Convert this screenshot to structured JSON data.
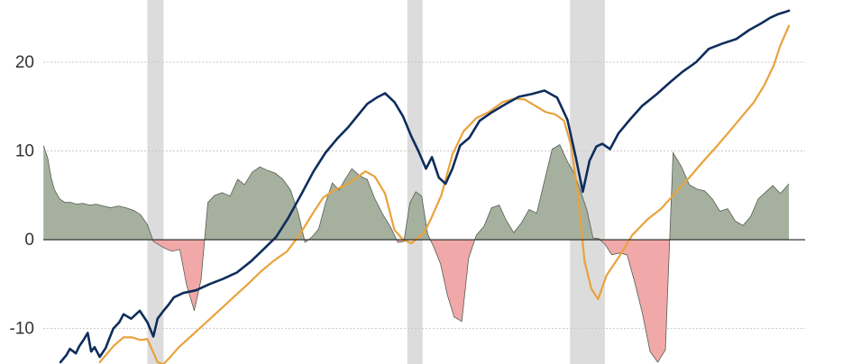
{
  "chart_data": {
    "type": "area",
    "title": "",
    "xlabel": "",
    "ylabel": "",
    "x_range": [
      0,
      100
    ],
    "ylim": [
      -14,
      27
    ],
    "y_ticks": [
      {
        "value": 20,
        "label": "20"
      },
      {
        "value": 10,
        "label": "10"
      },
      {
        "value": 0,
        "label": "0"
      },
      {
        "value": -10,
        "label": "-10"
      }
    ],
    "grid": true,
    "legend": "none",
    "shaded_periods": [
      {
        "start": 17.3,
        "end": 19.2
      },
      {
        "start": 47.8,
        "end": 49.6
      },
      {
        "start": 66.9,
        "end": 71.0
      }
    ],
    "colors": {
      "blue": "#0d2d5c",
      "orange": "#e8a33c",
      "area_positive": "#a5b09e",
      "area_negative": "#f0a8a8",
      "recession": "#dcdcdc",
      "zero_line": "#222222"
    },
    "series": [
      {
        "key": "blue",
        "x": [
          7.1,
          7.8,
          8.2,
          8.9,
          9.3,
          9.8,
          10.3,
          10.7,
          11.1,
          11.7,
          12.4,
          12.8,
          13.3,
          14.0,
          14.5,
          15.4,
          16.4,
          17.3,
          18.0,
          18.5,
          19.2,
          19.8,
          20.4,
          21.5,
          23.0,
          24.6,
          26.2,
          27.8,
          29.5,
          30.9,
          32.4,
          33.8,
          35.3,
          36.8,
          38.2,
          39.6,
          40.8,
          42.0,
          43.1,
          44.2,
          45.2,
          46.3,
          47.3,
          48.3,
          49.1,
          50.0,
          50.7,
          51.5,
          52.3,
          53.1,
          54.0,
          55.1,
          56.3,
          57.8,
          59.4,
          60.9,
          62.4,
          63.9,
          65.4,
          66.6,
          67.6,
          68.4,
          69.2,
          70.0,
          70.7,
          71.6,
          72.6,
          74.0,
          75.4,
          77.1,
          78.6,
          80.1,
          81.7,
          83.2,
          84.8,
          86.4,
          87.9,
          89.4,
          90.4,
          91.3,
          92.0,
          92.6
        ],
        "y": [
          -13.8,
          -13.0,
          -12.3,
          -12.8,
          -12.0,
          -11.3,
          -10.5,
          -12.6,
          -12.1,
          -13.2,
          -12.2,
          -11.2,
          -10.0,
          -9.3,
          -8.4,
          -8.9,
          -8.0,
          -9.3,
          -10.9,
          -8.9,
          -8.0,
          -7.3,
          -6.5,
          -6.0,
          -5.7,
          -5.0,
          -4.4,
          -3.7,
          -2.4,
          -1.1,
          0.3,
          2.4,
          5.0,
          7.7,
          9.8,
          11.4,
          12.6,
          14.0,
          15.3,
          16.0,
          16.5,
          15.5,
          13.9,
          11.6,
          10.0,
          8.0,
          9.3,
          7.0,
          6.3,
          8.0,
          10.6,
          11.5,
          13.4,
          14.4,
          15.3,
          16.1,
          16.4,
          16.8,
          16.0,
          13.5,
          9.2,
          5.4,
          8.9,
          10.5,
          10.8,
          10.2,
          12.0,
          13.6,
          15.1,
          16.4,
          17.7,
          18.9,
          20.0,
          21.5,
          22.1,
          22.6,
          23.6,
          24.4,
          25.0,
          25.4,
          25.6,
          25.8
        ]
      },
      {
        "key": "orange",
        "x": [
          11.7,
          13.3,
          14.5,
          15.5,
          16.5,
          17.3,
          18.5,
          19.2,
          20.0,
          21.0,
          22.5,
          24.1,
          25.8,
          27.5,
          29.1,
          30.6,
          32.1,
          33.7,
          35.2,
          36.6,
          37.9,
          39.2,
          40.5,
          41.7,
          42.9,
          44.0,
          45.2,
          46.3,
          47.3,
          48.3,
          49.0,
          49.8,
          50.6,
          51.8,
          53.1,
          54.4,
          55.9,
          57.4,
          59.0,
          60.4,
          61.6,
          62.8,
          64.0,
          65.2,
          66.2,
          67.0,
          67.8,
          68.6,
          69.4,
          70.2,
          71.2,
          72.6,
          74.2,
          76.0,
          77.6,
          79.2,
          80.9,
          82.6,
          84.2,
          85.7,
          87.1,
          88.5,
          89.7,
          90.8,
          91.6,
          92.6
        ],
        "y": [
          -13.8,
          -12.0,
          -11.0,
          -11.0,
          -11.3,
          -11.2,
          -13.8,
          -14.0,
          -13.2,
          -12.1,
          -10.8,
          -9.4,
          -7.9,
          -6.4,
          -5.0,
          -3.6,
          -2.4,
          -1.3,
          0.6,
          2.8,
          4.7,
          5.6,
          6.1,
          6.9,
          7.7,
          7.1,
          5.2,
          1.1,
          0.0,
          -0.4,
          0.2,
          0.8,
          2.4,
          5.0,
          9.6,
          12.2,
          13.7,
          14.4,
          15.5,
          15.9,
          15.8,
          15.1,
          14.4,
          14.1,
          13.4,
          10.7,
          5.5,
          -2.4,
          -5.5,
          -6.7,
          -4.0,
          -2.0,
          0.5,
          2.3,
          3.5,
          5.2,
          7.0,
          8.9,
          10.6,
          12.3,
          13.9,
          15.5,
          17.4,
          19.6,
          21.9,
          24.1
        ]
      },
      {
        "key": "area",
        "x": [
          5.1,
          5.6,
          6.0,
          6.4,
          7.0,
          7.6,
          8.3,
          9.0,
          9.7,
          10.5,
          11.3,
          12.1,
          13.0,
          13.9,
          14.8,
          15.7,
          16.5,
          17.3,
          18.0,
          18.7,
          19.4,
          20.2,
          21.1,
          21.9,
          22.8,
          23.6,
          24.4,
          25.2,
          26.1,
          27.0,
          27.9,
          28.7,
          29.6,
          30.5,
          31.4,
          32.3,
          33.2,
          34.1,
          35.0,
          35.8,
          36.6,
          37.4,
          38.2,
          39.0,
          39.8,
          40.5,
          41.3,
          42.2,
          43.1,
          44.0,
          44.9,
          45.8,
          46.7,
          47.4,
          48.1,
          48.8,
          49.5,
          50.2,
          50.9,
          51.7,
          52.5,
          53.3,
          54.2,
          55.0,
          55.9,
          56.8,
          57.7,
          58.6,
          59.4,
          60.3,
          61.2,
          62.1,
          63.0,
          63.9,
          64.8,
          65.7,
          66.6,
          67.5,
          68.2,
          68.9,
          69.6,
          70.3,
          71.0,
          71.8,
          72.7,
          73.6,
          74.5,
          75.4,
          76.3,
          77.2,
          78.1,
          79.0,
          80.0,
          80.9,
          81.8,
          82.7,
          83.6,
          84.5,
          85.4,
          86.3,
          87.2,
          88.1,
          89.0,
          89.8,
          90.7,
          91.6,
          92.6
        ],
        "y": [
          10.6,
          9.2,
          7.0,
          5.6,
          4.6,
          4.2,
          4.2,
          4.0,
          4.1,
          3.9,
          4.0,
          3.8,
          3.6,
          3.8,
          3.6,
          3.3,
          2.8,
          1.7,
          -0.2,
          -0.6,
          -1.0,
          -1.3,
          -1.1,
          -5.1,
          -8.0,
          -4.5,
          4.2,
          5.0,
          5.3,
          4.9,
          6.8,
          6.2,
          7.6,
          8.2,
          7.8,
          7.5,
          6.8,
          5.6,
          3.0,
          -0.3,
          0.3,
          1.2,
          4.1,
          6.4,
          5.6,
          6.8,
          8.0,
          7.2,
          6.8,
          4.6,
          2.9,
          1.5,
          -0.3,
          -0.2,
          4.1,
          5.4,
          4.9,
          0.6,
          -0.8,
          -2.7,
          -6.2,
          -8.7,
          -9.2,
          -2.1,
          0.5,
          1.5,
          3.6,
          3.9,
          2.2,
          0.8,
          1.9,
          3.4,
          3.0,
          6.6,
          10.2,
          10.7,
          8.8,
          7.3,
          5.3,
          3.3,
          0.2,
          0.1,
          -0.5,
          -1.7,
          -1.5,
          -1.7,
          -4.8,
          -8.3,
          -12.6,
          -13.8,
          -12.4,
          9.8,
          8.2,
          6.2,
          5.7,
          5.5,
          4.6,
          3.2,
          3.5,
          2.1,
          1.6,
          2.6,
          4.6,
          5.3,
          6.1,
          5.2,
          6.3
        ]
      }
    ]
  }
}
